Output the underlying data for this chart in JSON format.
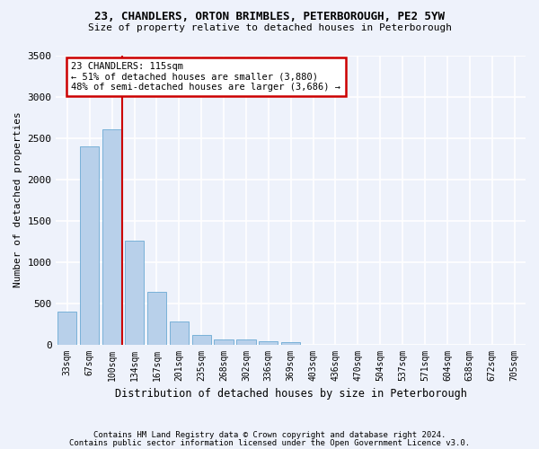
{
  "title1": "23, CHANDLERS, ORTON BRIMBLES, PETERBOROUGH, PE2 5YW",
  "title2": "Size of property relative to detached houses in Peterborough",
  "xlabel": "Distribution of detached houses by size in Peterborough",
  "ylabel": "Number of detached properties",
  "footer1": "Contains HM Land Registry data © Crown copyright and database right 2024.",
  "footer2": "Contains public sector information licensed under the Open Government Licence v3.0.",
  "annotation_title": "23 CHANDLERS: 115sqm",
  "annotation_line1": "← 51% of detached houses are smaller (3,880)",
  "annotation_line2": "48% of semi-detached houses are larger (3,686) →",
  "property_bin_index": 2,
  "bin_labels": [
    "33sqm",
    "67sqm",
    "100sqm",
    "134sqm",
    "167sqm",
    "201sqm",
    "235sqm",
    "268sqm",
    "302sqm",
    "336sqm",
    "369sqm",
    "403sqm",
    "436sqm",
    "470sqm",
    "504sqm",
    "537sqm",
    "571sqm",
    "604sqm",
    "638sqm",
    "672sqm",
    "705sqm"
  ],
  "bar_values": [
    400,
    2400,
    2600,
    1260,
    640,
    275,
    115,
    65,
    55,
    40,
    25,
    0,
    0,
    0,
    0,
    0,
    0,
    0,
    0,
    0,
    0
  ],
  "bar_color": "#b8d0ea",
  "bar_edge_color": "#6aaad4",
  "vline_color": "#cc0000",
  "annotation_box_color": "#ffffff",
  "annotation_box_edge": "#cc0000",
  "background_color": "#eef2fb",
  "plot_bg_color": "#eef2fb",
  "grid_color": "#ffffff",
  "ylim": [
    0,
    3500
  ],
  "yticks": [
    0,
    500,
    1000,
    1500,
    2000,
    2500,
    3000,
    3500
  ]
}
